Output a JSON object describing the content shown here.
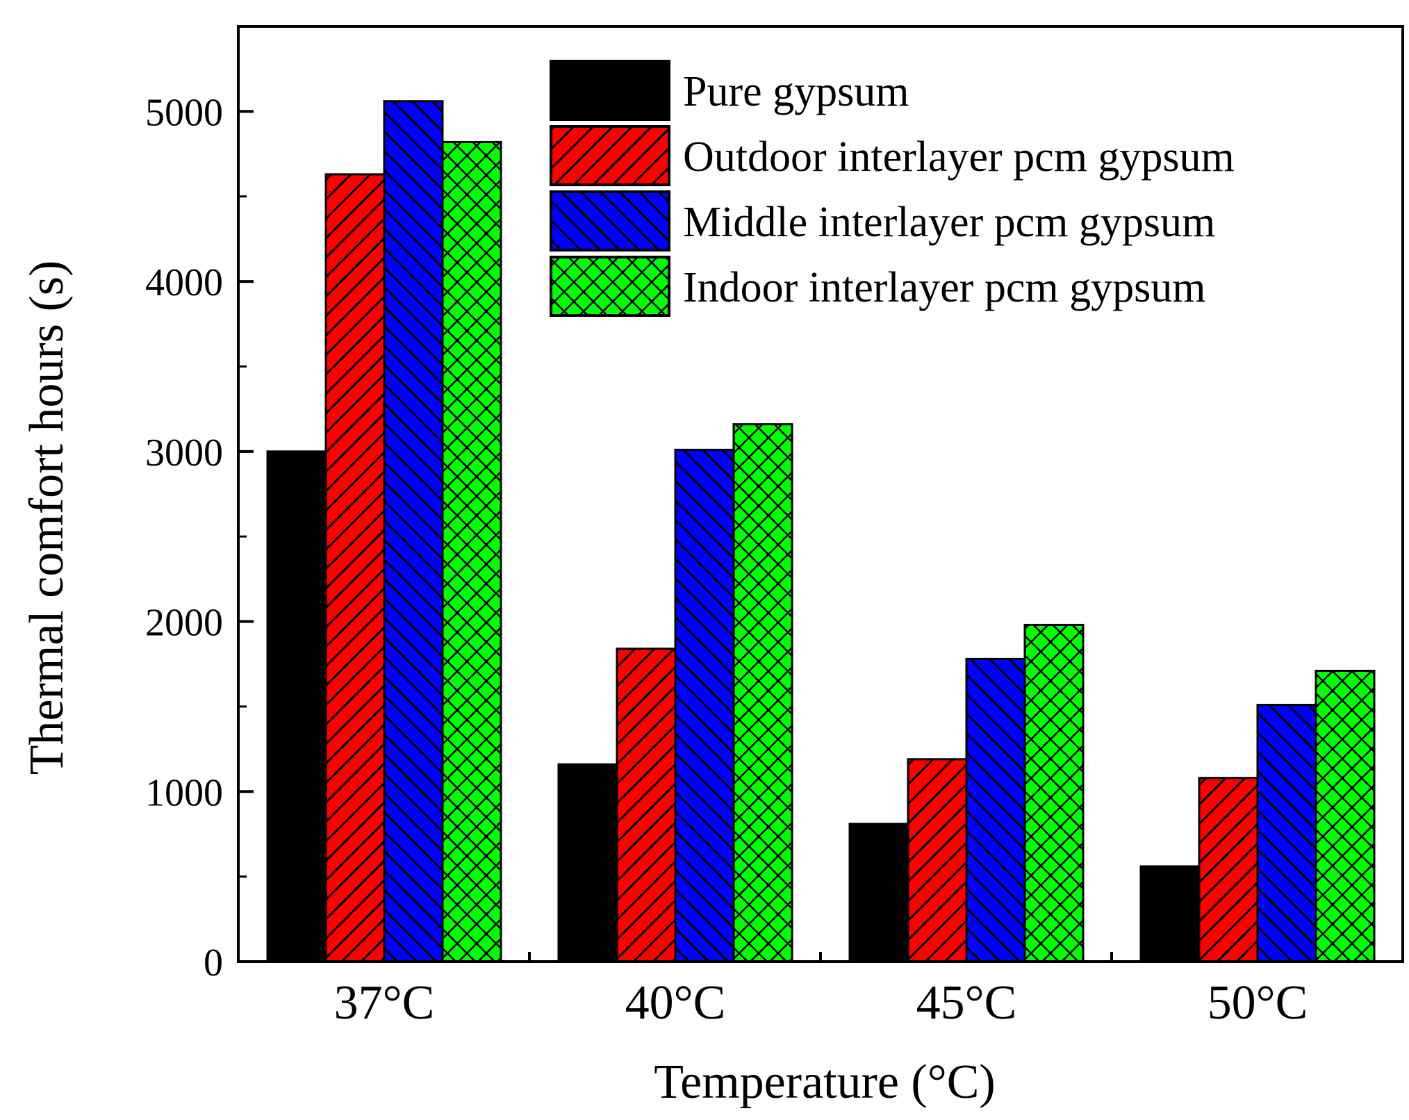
{
  "chart_data": {
    "type": "bar",
    "xlabel": "Temperature (°C)",
    "ylabel": "Thermal comfort hours (s)",
    "ylim": [
      0,
      5500
    ],
    "yticks": [
      0,
      1000,
      2000,
      3000,
      4000,
      5000
    ],
    "categories": [
      "37°C",
      "40°C",
      "45°C",
      "50°C"
    ],
    "legend_position": "top-right",
    "grid": false,
    "series": [
      {
        "name": "Pure gypsum",
        "color": "#000000",
        "pattern": "solid",
        "values": [
          3000,
          1160,
          810,
          560
        ]
      },
      {
        "name": "Outdoor interlayer pcm gypsum",
        "color": "#ff0000",
        "pattern": "forward-diagonal",
        "values": [
          4630,
          1840,
          1190,
          1080
        ]
      },
      {
        "name": "Middle interlayer pcm gypsum",
        "color": "#0000ff",
        "pattern": "back-diagonal",
        "values": [
          5060,
          3010,
          1780,
          1510
        ]
      },
      {
        "name": "Indoor interlayer pcm gypsum",
        "color": "#00ff00",
        "pattern": "crosshatch",
        "values": [
          4820,
          3160,
          1980,
          1710
        ]
      }
    ]
  }
}
